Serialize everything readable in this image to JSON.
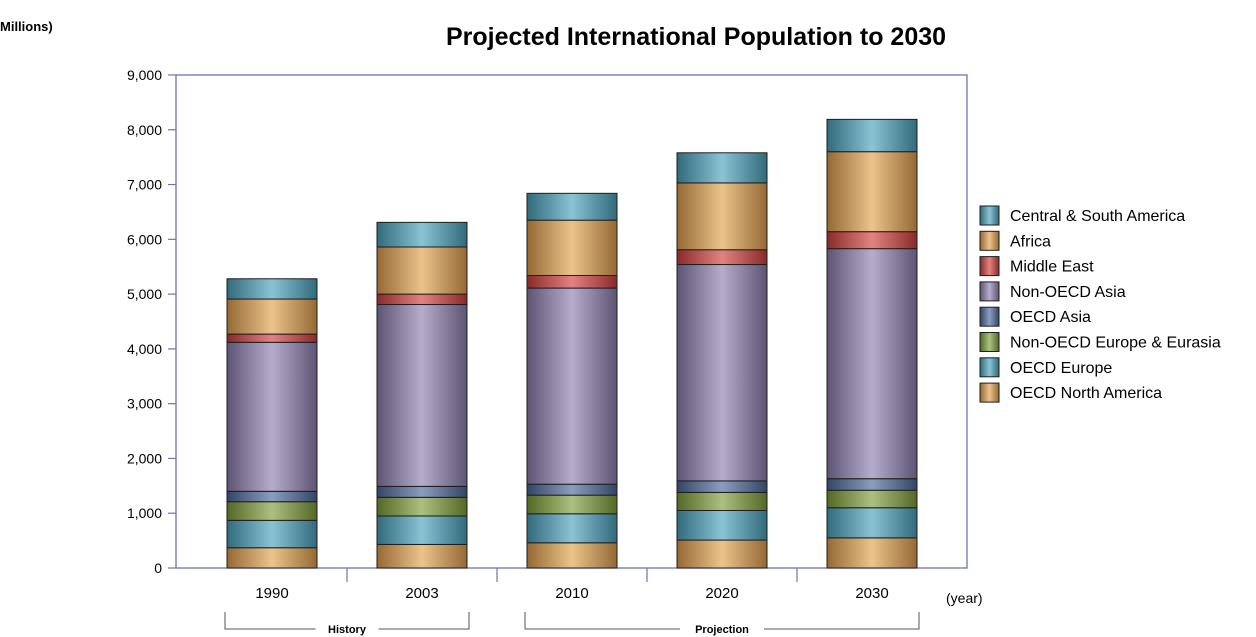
{
  "chart_data": {
    "type": "bar",
    "stacked": true,
    "title": "Projected International Population to 2030",
    "ylabel": "Millions)",
    "xlabel": "(year)",
    "categories": [
      "1990",
      "2003",
      "2010",
      "2020",
      "2030"
    ],
    "ylim": [
      0,
      9000
    ],
    "yticks": [
      0,
      1000,
      2000,
      3000,
      4000,
      5000,
      6000,
      7000,
      8000,
      9000
    ],
    "ytick_labels": [
      "0",
      "1,000",
      "2,000",
      "3,000",
      "4,000",
      "5,000",
      "6,000",
      "7,000",
      "8,000",
      "9,000"
    ],
    "grid": false,
    "legend_position": "right",
    "groups": [
      {
        "label": "History",
        "categories": [
          "1990",
          "2003"
        ]
      },
      {
        "label": "Projection",
        "categories": [
          "2010",
          "2020",
          "2030"
        ]
      }
    ],
    "series": [
      {
        "name": "OECD North America",
        "color": "#e3a24e",
        "values": [
          370,
          430,
          460,
          510,
          550
        ]
      },
      {
        "name": "OECD Europe",
        "color": "#4aa3bd",
        "values": [
          500,
          520,
          530,
          540,
          550
        ]
      },
      {
        "name": "Non-OECD Europe & Eurasia",
        "color": "#7fa03a",
        "values": [
          340,
          340,
          340,
          330,
          320
        ]
      },
      {
        "name": "OECD Asia",
        "color": "#4e6a9a",
        "values": [
          190,
          200,
          200,
          210,
          210
        ]
      },
      {
        "name": "Non-OECD Asia",
        "color": "#8f7fb0",
        "values": [
          2720,
          3320,
          3580,
          3950,
          4200
        ]
      },
      {
        "name": "Middle East",
        "color": "#d2403e",
        "values": [
          150,
          190,
          230,
          270,
          310
        ]
      },
      {
        "name": "Africa",
        "color": "#e3a24e",
        "values": [
          640,
          860,
          1010,
          1220,
          1460
        ]
      },
      {
        "name": "Central & South America",
        "color": "#4aa3bd",
        "values": [
          370,
          450,
          490,
          550,
          590
        ]
      }
    ]
  }
}
